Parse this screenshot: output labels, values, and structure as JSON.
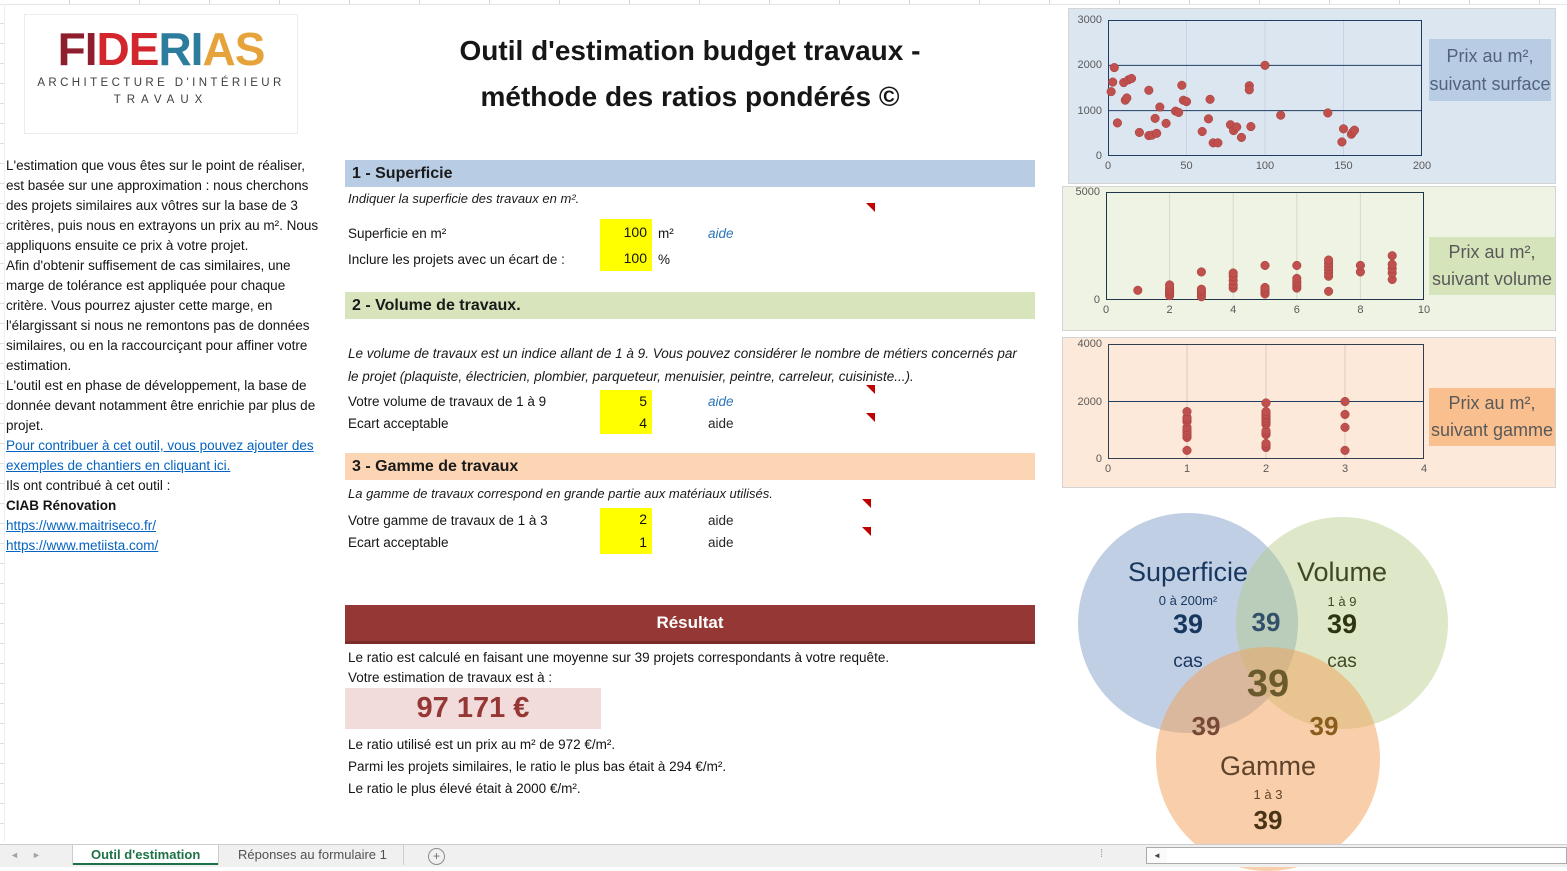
{
  "logo": {
    "letters": [
      {
        "ch": "F",
        "color": "#8e1e2d"
      },
      {
        "ch": "I",
        "color": "#8e1e2d"
      },
      {
        "ch": "D",
        "color": "#d2252c"
      },
      {
        "ch": "E",
        "color": "#d2252c"
      },
      {
        "ch": "R",
        "color": "#2c7c9e"
      },
      {
        "ch": "I",
        "color": "#2c7c9e"
      },
      {
        "ch": "A",
        "color": "#e6a33b"
      },
      {
        "ch": "S",
        "color": "#e6a33b"
      }
    ],
    "subtitle1": "ARCHITECTURE D'INTÉRIEUR",
    "subtitle2": "TRAVAUX"
  },
  "title": {
    "line1": "Outil d'estimation budget travaux -",
    "line2": "méthode des ratios pondérés ©"
  },
  "intro": {
    "p1": "L'estimation que vous êtes sur le point de réaliser, est basée sur une approximation : nous cherchons des projets similaires aux vôtres sur la base de 3 critères, puis nous en extrayons un prix au m². Nous appliquons ensuite ce prix à votre projet.",
    "p2": "Afin d'obtenir suffisement de cas similaires, une marge de tolérance est appliquée pour chaque critère. Vous pourrez ajuster cette marge, en l'élargissant si nous ne remontons pas de données similaires, ou en la raccourciçant pour affiner votre estimation.",
    "p3": "L'outil est en phase de développement, la base de donnée devant notamment être enrichie par plus de projet.",
    "contribute_link": "Pour contribuer à cet outil, vous pouvez ajouter des exemples de chantiers en cliquant ici.",
    "contributors_heading": "Ils ont contribué à cet outil :",
    "contributor_name": "CIAB Rénovation",
    "link1": "https://www.maitriseco.fr/",
    "link2": "https://www.metiista.com/"
  },
  "sections": {
    "superficie": {
      "header": "1 - Superficie",
      "header_bg": "#b8cce4",
      "note": "Indiquer la superficie des travaux en m².",
      "row1": {
        "label": "Superficie en m²",
        "value": "100",
        "unit": "m²",
        "aide": "aide"
      },
      "row2": {
        "label": "Inclure les projets avec un écart de :",
        "value": "100",
        "unit": "%"
      }
    },
    "volume": {
      "header": "2 - Volume de travaux.",
      "header_bg": "#d7e4bc",
      "note": "Le volume de travaux est un indice allant de 1 à 9. Vous pouvez considérer le nombre de métiers concernés par le projet (plaquiste, électricien, plombier, parqueteur, menuisier, peintre, carreleur, cuisiniste...).",
      "row1": {
        "label": "Votre volume de travaux de 1 à 9",
        "value": "5",
        "aide": "aide"
      },
      "row2": {
        "label": "Ecart acceptable",
        "value": "4",
        "aide": "aide"
      }
    },
    "gamme": {
      "header": "3 - Gamme de travaux",
      "header_bg": "#fcd5b4",
      "note": "La gamme de travaux correspond en grande partie aux matériaux utilisés.",
      "row1": {
        "label": "Votre gamme de travaux de 1 à 3",
        "value": "2",
        "aide": "aide"
      },
      "row2": {
        "label": "Ecart acceptable",
        "value": "1",
        "aide": "aide"
      }
    }
  },
  "result": {
    "header": "Résultat",
    "header_bg": "#953735",
    "line1": "Le ratio est calculé en faisant une moyenne sur 39 projets correspondants à votre requête.",
    "line2": "Votre estimation de travaux est à :",
    "amount": "97 171 €",
    "amount_bg": "#f2dcdb",
    "amount_color": "#953735",
    "ratio_used": "Le ratio utilisé est un prix au m² de 972 €/m².",
    "ratio_min": "Parmi les projets similaires, le ratio le plus bas était à 294 €/m².",
    "ratio_max": "Le ratio le plus élevé était à 2000 €/m²."
  },
  "chart_data": [
    {
      "type": "scatter",
      "title": "Prix au m², suivant surface",
      "label_line1": "Prix au m²,",
      "label_line2": "suivant surface",
      "xlabel": "",
      "ylabel": "",
      "xlim": [
        0,
        200
      ],
      "ylim": [
        0,
        3000
      ],
      "xticks": [
        0,
        50,
        100,
        150,
        200
      ],
      "yticks": [
        0,
        1000,
        2000,
        3000
      ],
      "bg": "#dce6f1",
      "label_bg": "#b8cce4",
      "label_color": "#53637f",
      "dot_color": "#c0504d",
      "grid_minor": "#c7d4e8",
      "grid_major": "#1f3c63",
      "border_color": "#1f3c63",
      "points": [
        [
          4,
          1950
        ],
        [
          3,
          1630
        ],
        [
          2,
          1420
        ],
        [
          6,
          730
        ],
        [
          10,
          1620
        ],
        [
          13,
          1680
        ],
        [
          11,
          1230
        ],
        [
          12,
          1280
        ],
        [
          15,
          1710
        ],
        [
          20,
          520
        ],
        [
          26,
          1450
        ],
        [
          26,
          450
        ],
        [
          28,
          460
        ],
        [
          31,
          500
        ],
        [
          30,
          830
        ],
        [
          33,
          1080
        ],
        [
          37,
          720
        ],
        [
          43,
          990
        ],
        [
          45,
          960
        ],
        [
          47,
          1560
        ],
        [
          48,
          1230
        ],
        [
          50,
          1200
        ],
        [
          60,
          540
        ],
        [
          64,
          820
        ],
        [
          65,
          1250
        ],
        [
          67,
          290
        ],
        [
          70,
          290
        ],
        [
          78,
          690
        ],
        [
          80,
          560
        ],
        [
          82,
          640
        ],
        [
          85,
          410
        ],
        [
          90,
          1550
        ],
        [
          90,
          1460
        ],
        [
          91,
          650
        ],
        [
          100,
          2000
        ],
        [
          110,
          900
        ],
        [
          140,
          950
        ],
        [
          149,
          310
        ],
        [
          150,
          600
        ],
        [
          155,
          480
        ],
        [
          156,
          530
        ],
        [
          157,
          570
        ]
      ]
    },
    {
      "type": "scatter",
      "title": "Prix au m², suivant volume",
      "label_line1": "Prix au m²,",
      "label_line2": "suivant volume",
      "xlabel": "",
      "ylabel": "",
      "xlim": [
        0,
        10
      ],
      "ylim": [
        0,
        5000
      ],
      "xticks": [
        0,
        2,
        4,
        6,
        8,
        10
      ],
      "yticks": [
        0,
        5000
      ],
      "bg": "#eff3e3",
      "label_bg": "#d6e4bc",
      "label_color": "#595959",
      "dot_color": "#c0504d",
      "grid_minor": "#d4dcc4",
      "grid_major": "#1f3c63",
      "border_color": "#1f3549",
      "points": [
        [
          1,
          450
        ],
        [
          2,
          200
        ],
        [
          2,
          300
        ],
        [
          2,
          380
        ],
        [
          2,
          450
        ],
        [
          2,
          550
        ],
        [
          2,
          700
        ],
        [
          3,
          150
        ],
        [
          3,
          280
        ],
        [
          3,
          400
        ],
        [
          3,
          500
        ],
        [
          3,
          1300
        ],
        [
          4,
          550
        ],
        [
          4,
          700
        ],
        [
          4,
          900
        ],
        [
          4,
          1100
        ],
        [
          4,
          1250
        ],
        [
          5,
          280
        ],
        [
          5,
          380
        ],
        [
          5,
          480
        ],
        [
          5,
          580
        ],
        [
          5,
          1600
        ],
        [
          6,
          550
        ],
        [
          6,
          650
        ],
        [
          6,
          750
        ],
        [
          6,
          850
        ],
        [
          6,
          1000
        ],
        [
          6,
          1600
        ],
        [
          7,
          400
        ],
        [
          7,
          1100
        ],
        [
          7,
          1250
        ],
        [
          7,
          1400
        ],
        [
          7,
          1550
        ],
        [
          7,
          1700
        ],
        [
          7,
          1850
        ],
        [
          8,
          1300
        ],
        [
          8,
          1600
        ],
        [
          9,
          950
        ],
        [
          9,
          1250
        ],
        [
          9,
          1450
        ],
        [
          9,
          1650
        ],
        [
          9,
          2050
        ]
      ]
    },
    {
      "type": "scatter",
      "title": "Prix au m², suivant gamme",
      "label_line1": "Prix au m²,",
      "label_line2": "suivant gamme",
      "xlabel": "",
      "ylabel": "",
      "xlim": [
        0,
        4
      ],
      "ylim": [
        0,
        4000
      ],
      "xticks": [
        0,
        1,
        2,
        3,
        4
      ],
      "yticks": [
        0,
        2000,
        4000
      ],
      "bg": "#fde9d9",
      "label_bg": "#fabf8f",
      "label_color": "#595959",
      "dot_color": "#c0504d",
      "grid_minor": "#e0cbba",
      "grid_major": "#1f3c63",
      "border_color": "#333f50",
      "points": [
        [
          1,
          300
        ],
        [
          1,
          750
        ],
        [
          1,
          820
        ],
        [
          1,
          900
        ],
        [
          1,
          1000
        ],
        [
          1,
          1100
        ],
        [
          1,
          1300
        ],
        [
          1,
          1380
        ],
        [
          1,
          1450
        ],
        [
          1,
          1650
        ],
        [
          2,
          400
        ],
        [
          2,
          470
        ],
        [
          2,
          540
        ],
        [
          2,
          850
        ],
        [
          2,
          920
        ],
        [
          2,
          980
        ],
        [
          2,
          1200
        ],
        [
          2,
          1270
        ],
        [
          2,
          1340
        ],
        [
          2,
          1420
        ],
        [
          2,
          1500
        ],
        [
          2,
          1560
        ],
        [
          2,
          1650
        ],
        [
          2,
          1950
        ],
        [
          3,
          300
        ],
        [
          3,
          1100
        ],
        [
          3,
          1550
        ],
        [
          3,
          2000
        ]
      ]
    }
  ],
  "venn": {
    "superficie": {
      "name": "Superficie",
      "range": "0 à 200m²",
      "count": "39",
      "unit": "cas",
      "color": "#b8cce4",
      "text_color": "#17375e"
    },
    "volume": {
      "name": "Volume",
      "range": "1 à 9",
      "count": "39",
      "unit": "cas",
      "color": "#d8e4bc",
      "text_color": "#3f4822"
    },
    "gamme": {
      "name": "Gamme",
      "range": "1 à 3",
      "count": "39",
      "color": "#fabf8f",
      "text_color": "#5f432a"
    },
    "overlap_superficie_volume": "39",
    "overlap_superficie_gamme": "39",
    "overlap_volume_gamme": "39",
    "overlap_center": "39"
  },
  "sheet_bar": {
    "nav_prev": "◄",
    "nav_next": "►",
    "active_tab": "Outil d'estimation",
    "inactive_tab": "Réponses au formulaire 1",
    "add_button": "+",
    "dots": "⁞",
    "scroll_left": "◄",
    "active_color": "#1e7145"
  }
}
